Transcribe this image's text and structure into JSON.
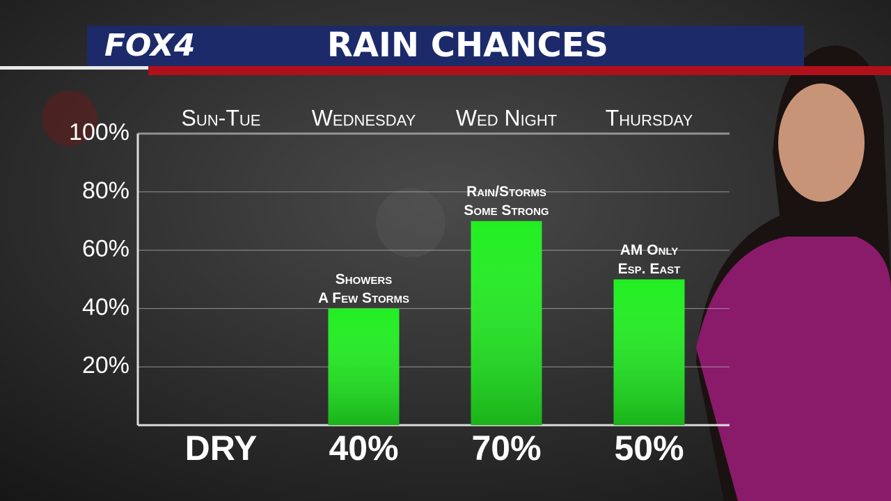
{
  "brand": "FOX4",
  "chart_data": {
    "type": "bar",
    "title": "RAIN CHANCES",
    "categories": [
      "Sun-Tue",
      "Wednesday",
      "Wed Night",
      "Thursday"
    ],
    "values": [
      0,
      40,
      70,
      50
    ],
    "value_labels": [
      "DRY",
      "40%",
      "70%",
      "50%"
    ],
    "annotations": [
      null,
      [
        "Showers",
        "A Few Storms"
      ],
      [
        "Rain/Storms",
        "Some Strong"
      ],
      [
        "AM Only",
        "Esp. East"
      ]
    ],
    "color": "#22ee22",
    "ylim": [
      0,
      100
    ],
    "yticks": [
      {
        "value": 20,
        "label": "20%"
      },
      {
        "value": 40,
        "label": "40%"
      },
      {
        "value": 60,
        "label": "60%"
      },
      {
        "value": 80,
        "label": "80%"
      },
      {
        "value": 100,
        "label": "100%"
      }
    ],
    "grid": true
  }
}
